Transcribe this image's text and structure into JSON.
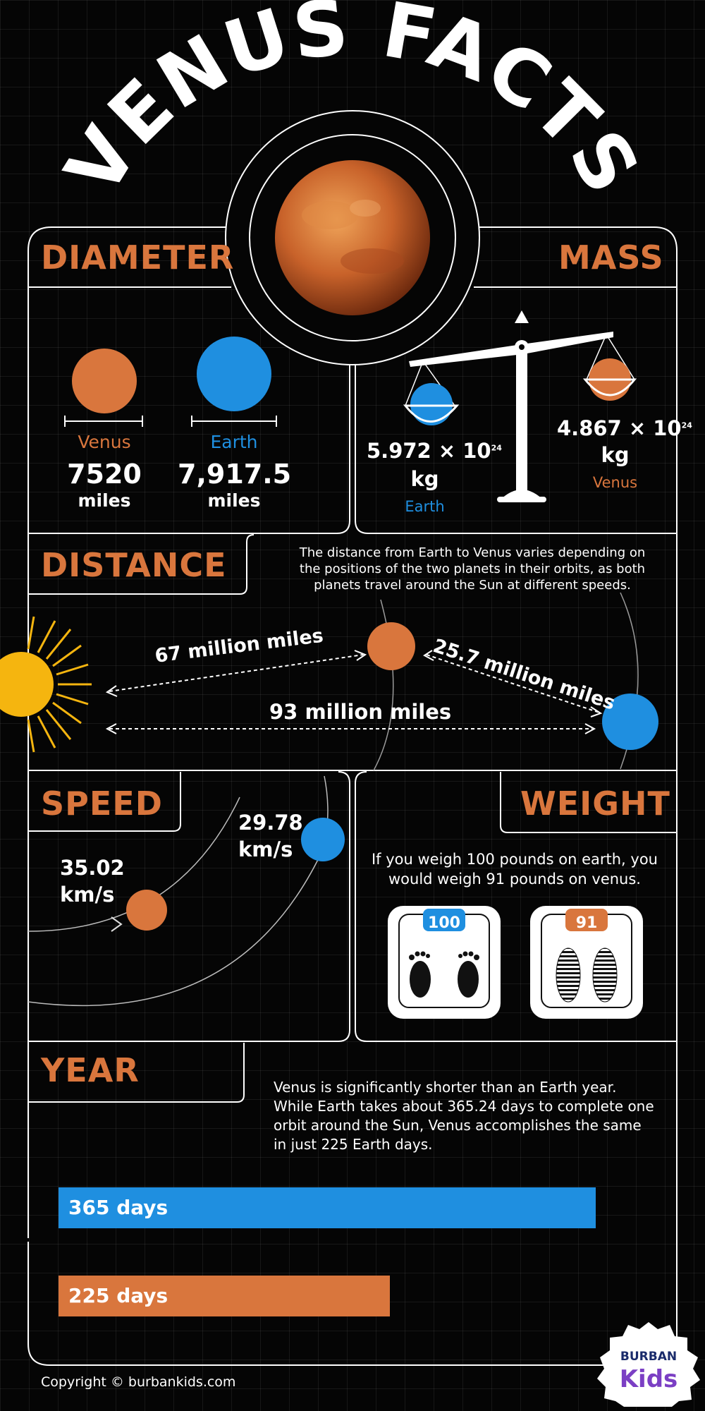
{
  "title": "VENUS FACTS",
  "diameter": {
    "heading": "DIAMETER",
    "venus": {
      "label": "Venus",
      "value": "7520",
      "unit": "miles"
    },
    "earth": {
      "label": "Earth",
      "value": "7,917.5",
      "unit": "miles"
    }
  },
  "mass": {
    "heading": "MASS",
    "earth": {
      "value": "5.972 × 10",
      "exp": "24",
      "unit": "kg",
      "label": "Earth"
    },
    "venus": {
      "value": "4.867 × 10",
      "exp": "24",
      "unit": "kg",
      "label": "Venus"
    }
  },
  "distance": {
    "heading": "DISTANCE",
    "description": "The distance from Earth to Venus varies depending on the positions of the two planets in their orbits, as both planets travel around the Sun at different speeds.",
    "sun_to_venus": "67 million miles",
    "venus_to_earth": "25.7 million miles",
    "sun_to_earth": "93 million miles"
  },
  "speed": {
    "heading": "SPEED",
    "venus": {
      "value": "35.02",
      "unit": "km/s"
    },
    "earth": {
      "value": "29.78",
      "unit": "km/s"
    }
  },
  "weight": {
    "heading": "WEIGHT",
    "description": "If you weigh 100 pounds on earth, you would weigh 91 pounds on venus.",
    "earth_scale": "100",
    "venus_scale": "91"
  },
  "year": {
    "heading": "YEAR",
    "description": "Venus is significantly shorter than an Earth year. While Earth takes about 365.24 days to complete one orbit around the Sun, Venus accomplishes the same in just 225 Earth days.",
    "bars": [
      {
        "label": "365 days",
        "value": 365,
        "color": "#1f8fe0"
      },
      {
        "label": "225 days",
        "value": 225,
        "color": "#d9763d"
      }
    ]
  },
  "footer": {
    "copyright": "Copyright © burbankids.com"
  },
  "logo": {
    "line1": "BURBAN",
    "line2": "Kids"
  },
  "colors": {
    "venus": "#d9763d",
    "earth": "#1f8fe0",
    "sun": "#f5b50f"
  }
}
